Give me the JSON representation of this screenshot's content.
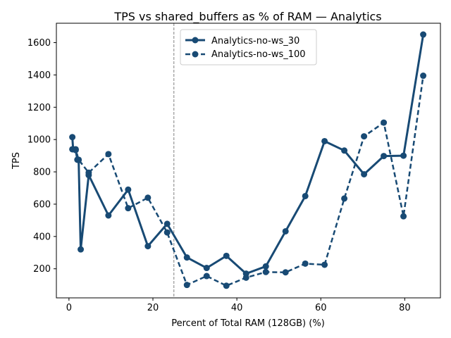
{
  "chart_data": {
    "type": "line",
    "title": "TPS vs shared_buffers as % of RAM — Analytics",
    "xlabel": "Percent of Total RAM (128GB) (%)",
    "ylabel": "TPS",
    "xlim": [
      -3,
      88.5
    ],
    "ylim": [
      20,
      1720
    ],
    "xticks": [
      0,
      20,
      40,
      60,
      80
    ],
    "yticks": [
      200,
      400,
      600,
      800,
      1000,
      1200,
      1400,
      1600
    ],
    "grid": false,
    "legend_position": "upper-center",
    "reference_line": {
      "x": 25,
      "style": "dashed",
      "color": "#808080"
    },
    "series": [
      {
        "name": "Analytics-no-ws_30",
        "linestyle": "solid",
        "color": "#184a74",
        "x": [
          0.8,
          1.0,
          1.6,
          2.0,
          2.3,
          2.8,
          4.7,
          9.4,
          14.1,
          18.8,
          23.4,
          28.1,
          32.8,
          37.5,
          42.2,
          46.9,
          51.6,
          56.3,
          60.9,
          65.6,
          70.3,
          75.0,
          79.7,
          84.4
        ],
        "y": [
          1015,
          940,
          935,
          875,
          873,
          320,
          780,
          530,
          690,
          340,
          478,
          270,
          205,
          280,
          170,
          215,
          432,
          650,
          990,
          932,
          785,
          898,
          900,
          1650
        ]
      },
      {
        "name": "Analytics-no-ws_100",
        "linestyle": "dashed",
        "color": "#184a74",
        "x": [
          0.8,
          1.6,
          2.3,
          4.7,
          9.4,
          14.1,
          18.8,
          23.4,
          28.1,
          32.8,
          37.5,
          42.2,
          46.9,
          51.6,
          56.3,
          60.9,
          65.6,
          70.3,
          75.0,
          79.7,
          84.4
        ],
        "y": [
          940,
          940,
          875,
          795,
          910,
          575,
          640,
          425,
          100,
          155,
          95,
          145,
          180,
          178,
          232,
          225,
          635,
          1020,
          1105,
          525,
          1395
        ]
      }
    ]
  }
}
